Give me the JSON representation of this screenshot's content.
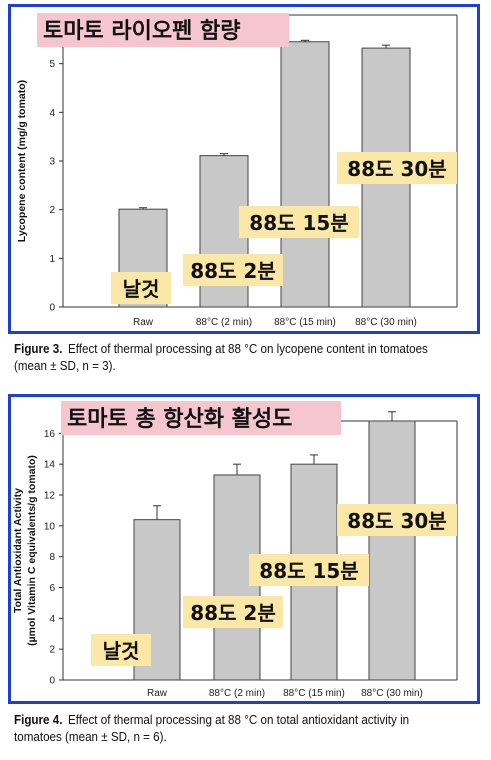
{
  "figures": [
    {
      "caption_label": "Figure 3.",
      "caption_text": "Effect of thermal processing at 88 °C on lycopene content in tomatoes (mean ± SD, n = 3).",
      "overlay_title": "토마토 라이오펜 함량",
      "overlay_labels": [
        "날것",
        "88도 2분",
        "88도 15분",
        "88도 30분"
      ],
      "colors": {
        "title_bg": "#f6c6d0",
        "label_bg": "#fbe7a6",
        "bar": "#c8c8c8",
        "frame": "#1f3fcf"
      }
    },
    {
      "caption_label": "Figure 4.",
      "caption_text": "Effect of thermal processing at 88 °C on total antioxidant activity in tomatoes (mean ± SD, n = 6).",
      "overlay_title": "토마토 총 항산화 활성도",
      "overlay_labels": [
        "날것",
        "88도 2분",
        "88도 15분",
        "88도 30분"
      ],
      "colors": {
        "title_bg": "#f6c6d0",
        "label_bg": "#fbe7a6",
        "bar": "#c8c8c8",
        "frame": "#1f3fcf"
      }
    }
  ],
  "chart_data": [
    {
      "type": "bar",
      "categories": [
        "Raw",
        "88°C (2 min)",
        "88°C (15 min)",
        "88°C (30 min)"
      ],
      "values": [
        2.01,
        3.11,
        5.45,
        5.32
      ],
      "errors": [
        0.03,
        0.04,
        0.03,
        0.06
      ],
      "ylabel": "Lycopene content (mg/g tomato)",
      "ylim": [
        0,
        6
      ],
      "yticks": [
        0,
        1,
        2,
        3,
        4,
        5
      ]
    },
    {
      "type": "bar",
      "categories": [
        "Raw",
        "88°C (2 min)",
        "88°C (15 min)",
        "88°C (30 min)"
      ],
      "values": [
        10.4,
        13.3,
        14.0,
        16.8
      ],
      "errors": [
        0.9,
        0.7,
        0.6,
        0.6
      ],
      "ylabel": "Total Antioxidant Activity",
      "ylabel2": "(µmol Vitamin C equivalents/g tomato)",
      "ylim": [
        0,
        16.8
      ],
      "yticks": [
        0,
        2,
        4,
        6,
        8,
        10,
        12,
        14,
        16
      ]
    }
  ]
}
